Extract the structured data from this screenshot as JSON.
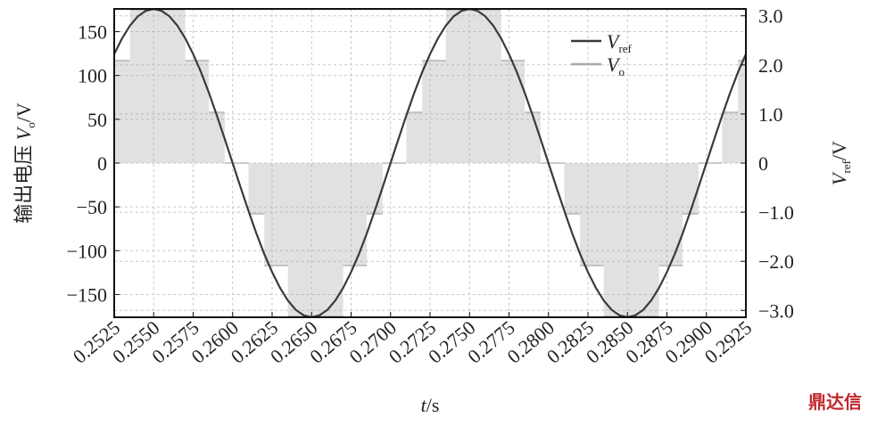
{
  "chart_data": {
    "type": "line",
    "ylabel": {
      "text": "输出电压 ",
      "var": "V",
      "sub": "o",
      "unit": "/V"
    },
    "y2label": {
      "var": "V",
      "sub": "ref",
      "unit": "/V"
    },
    "xlabel": {
      "var": "t",
      "unit": "/s"
    },
    "watermark": "鼎达信",
    "legend": "upper right",
    "grid": true,
    "xlim": [
      0.2525,
      0.2925
    ],
    "xticks": [
      0.2525,
      {
        "value": 0.255,
        "label": "0.2550"
      },
      0.2575,
      {
        "value": 0.26,
        "label": "0.2600"
      },
      0.2625,
      {
        "value": 0.265,
        "label": "0.2650"
      },
      0.2675,
      {
        "value": 0.27,
        "label": "0.2700"
      },
      0.2725,
      {
        "value": 0.275,
        "label": "0.2750"
      },
      0.2775,
      {
        "value": 0.28,
        "label": "0.2800"
      },
      0.2825,
      {
        "value": 0.285,
        "label": "0.2850"
      },
      0.2875,
      {
        "value": 0.29,
        "label": "0.2900"
      },
      0.2925
    ],
    "ylim": [
      -176,
      176
    ],
    "yticks": [
      150,
      100,
      50,
      0,
      {
        "value": -50,
        "label": "−50"
      },
      {
        "value": -100,
        "label": "−100"
      },
      {
        "value": -150,
        "label": "−150"
      }
    ],
    "y2lim": [
      -3.14,
      3.14
    ],
    "y2ticks": [
      {
        "value": 3,
        "label": "3.0"
      },
      {
        "value": 2,
        "label": "2.0"
      },
      {
        "value": 1,
        "label": "1.0"
      },
      0,
      {
        "value": -1,
        "label": "−1.0"
      },
      {
        "value": -2,
        "label": "−2.0"
      },
      {
        "value": -3,
        "label": "−3.0"
      }
    ],
    "x": [
      0.2525,
      0.253,
      0.2535,
      0.254,
      0.2545,
      0.255,
      0.2555,
      0.256,
      0.2565,
      0.257,
      0.2575,
      0.258,
      0.2585,
      0.259,
      0.2595,
      0.26,
      0.2605,
      0.261,
      0.2615,
      0.262,
      0.2625,
      0.263,
      0.2635,
      0.264,
      0.2645,
      0.265,
      0.2655,
      0.266,
      0.2665,
      0.267,
      0.2675,
      0.268,
      0.2685,
      0.269,
      0.2695,
      0.27,
      0.2705,
      0.271,
      0.2715,
      0.272,
      0.2725,
      0.273,
      0.2735,
      0.274,
      0.2745,
      0.275,
      0.2755,
      0.276,
      0.2765,
      0.277,
      0.2775,
      0.278,
      0.2785,
      0.279,
      0.2795,
      0.28,
      0.2805,
      0.281,
      0.2815,
      0.282,
      0.2825,
      0.283,
      0.2835,
      0.284,
      0.2845,
      0.285,
      0.2855,
      0.286,
      0.2865,
      0.287,
      0.2875,
      0.288,
      0.2885,
      0.289,
      0.2895,
      0.29,
      0.2905,
      0.291,
      0.2915,
      0.292,
      0.2925
    ],
    "series": [
      {
        "name": "V",
        "subscript": "ref",
        "color": "#3a3a3a",
        "axis": "y2",
        "values": [
          2.22,
          2.54,
          2.8,
          2.99,
          3.1,
          3.14,
          3.1,
          2.99,
          2.8,
          2.54,
          2.22,
          1.85,
          1.43,
          0.97,
          0.49,
          0,
          -0.49,
          -0.97,
          -1.43,
          -1.85,
          -2.22,
          -2.54,
          -2.8,
          -2.99,
          -3.1,
          -3.14,
          -3.1,
          -2.99,
          -2.8,
          -2.54,
          -2.22,
          -1.85,
          -1.43,
          -0.97,
          -0.49,
          0,
          0.49,
          0.97,
          1.43,
          1.85,
          2.22,
          2.54,
          2.8,
          2.99,
          3.1,
          3.14,
          3.1,
          2.99,
          2.8,
          2.54,
          2.22,
          1.85,
          1.43,
          0.97,
          0.49,
          0,
          -0.49,
          -0.97,
          -1.43,
          -1.85,
          -2.22,
          -2.54,
          -2.8,
          -2.99,
          -3.1,
          -3.14,
          -3.1,
          -2.99,
          -2.8,
          -2.54,
          -2.22,
          -1.85,
          -1.43,
          -0.97,
          -0.49,
          0,
          0.49,
          0.97,
          1.43,
          1.85,
          2.22
        ]
      },
      {
        "name": "V",
        "subscript": "o",
        "color": "#a8a8a8",
        "axis": "y",
        "values": [
          117,
          117,
          175,
          175,
          175,
          175,
          175,
          175,
          175,
          117,
          117,
          117,
          58,
          58,
          0,
          0,
          0,
          -58,
          -58,
          -117,
          -117,
          -117,
          -175,
          -175,
          -175,
          -175,
          -175,
          -175,
          -175,
          -117,
          -117,
          -117,
          -58,
          -58,
          0,
          0,
          0,
          58,
          58,
          117,
          117,
          117,
          175,
          175,
          175,
          175,
          175,
          175,
          175,
          117,
          117,
          117,
          58,
          58,
          0,
          0,
          0,
          -58,
          -58,
          -117,
          -117,
          -117,
          -175,
          -175,
          -175,
          -175,
          -175,
          -175,
          -175,
          -117,
          -117,
          -117,
          -58,
          -58,
          0,
          0,
          0,
          58,
          58,
          117,
          117
        ]
      }
    ]
  }
}
